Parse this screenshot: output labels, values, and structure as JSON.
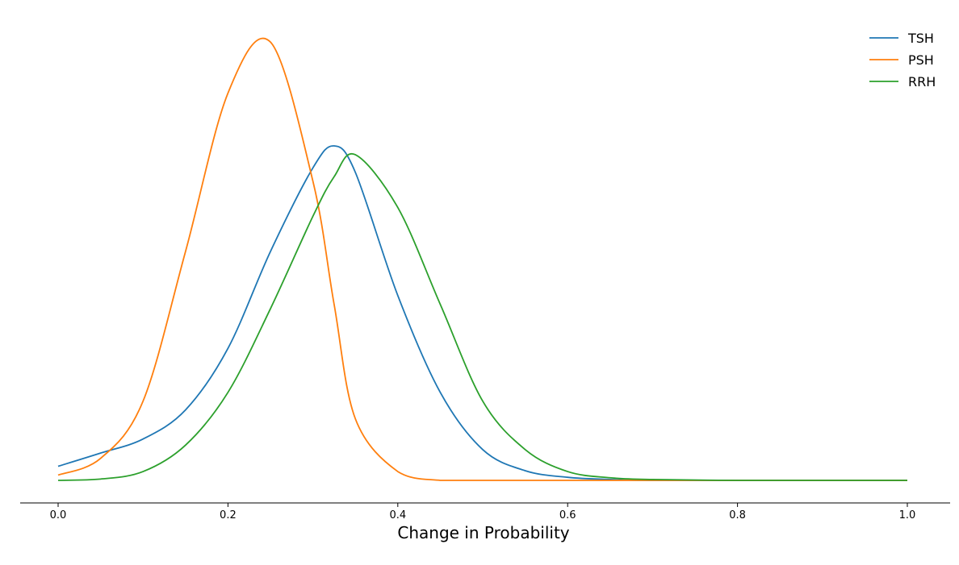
{
  "chart_data": {
    "type": "line",
    "title": "",
    "xlabel": "Change in Probability",
    "ylabel": "",
    "xlim": [
      0.0,
      1.0
    ],
    "ylim": [
      0,
      1.0
    ],
    "x_ticks": [
      "0.0",
      "0.2",
      "0.4",
      "0.6",
      "0.8",
      "1.0"
    ],
    "y_axis_visible": false,
    "grid": false,
    "legend_position": "top-right",
    "x": [
      0.0,
      0.05,
      0.1,
      0.15,
      0.2,
      0.25,
      0.3,
      0.325,
      0.35,
      0.4,
      0.45,
      0.5,
      0.55,
      0.6,
      0.65,
      0.7,
      0.8,
      0.9,
      1.0
    ],
    "series": [
      {
        "name": "TSH",
        "color": "#1f77b4",
        "values": [
          0.032,
          0.062,
          0.094,
          0.16,
          0.3,
          0.52,
          0.71,
          0.76,
          0.7,
          0.42,
          0.2,
          0.07,
          0.022,
          0.007,
          0.002,
          0.0,
          0.0,
          0.0,
          0.0
        ]
      },
      {
        "name": "PSH",
        "color": "#ff7f0e",
        "values": [
          0.012,
          0.05,
          0.18,
          0.52,
          0.88,
          0.996,
          0.68,
          0.4,
          0.14,
          0.02,
          0.0,
          0.0,
          0.0,
          0.0,
          0.0,
          0.0,
          0.0,
          0.0,
          0.0
        ]
      },
      {
        "name": "RRH",
        "color": "#2ca02c",
        "values": [
          0.0,
          0.003,
          0.02,
          0.08,
          0.2,
          0.39,
          0.6,
          0.69,
          0.74,
          0.62,
          0.4,
          0.18,
          0.07,
          0.02,
          0.006,
          0.002,
          0.0,
          0.0,
          0.0
        ]
      }
    ]
  }
}
